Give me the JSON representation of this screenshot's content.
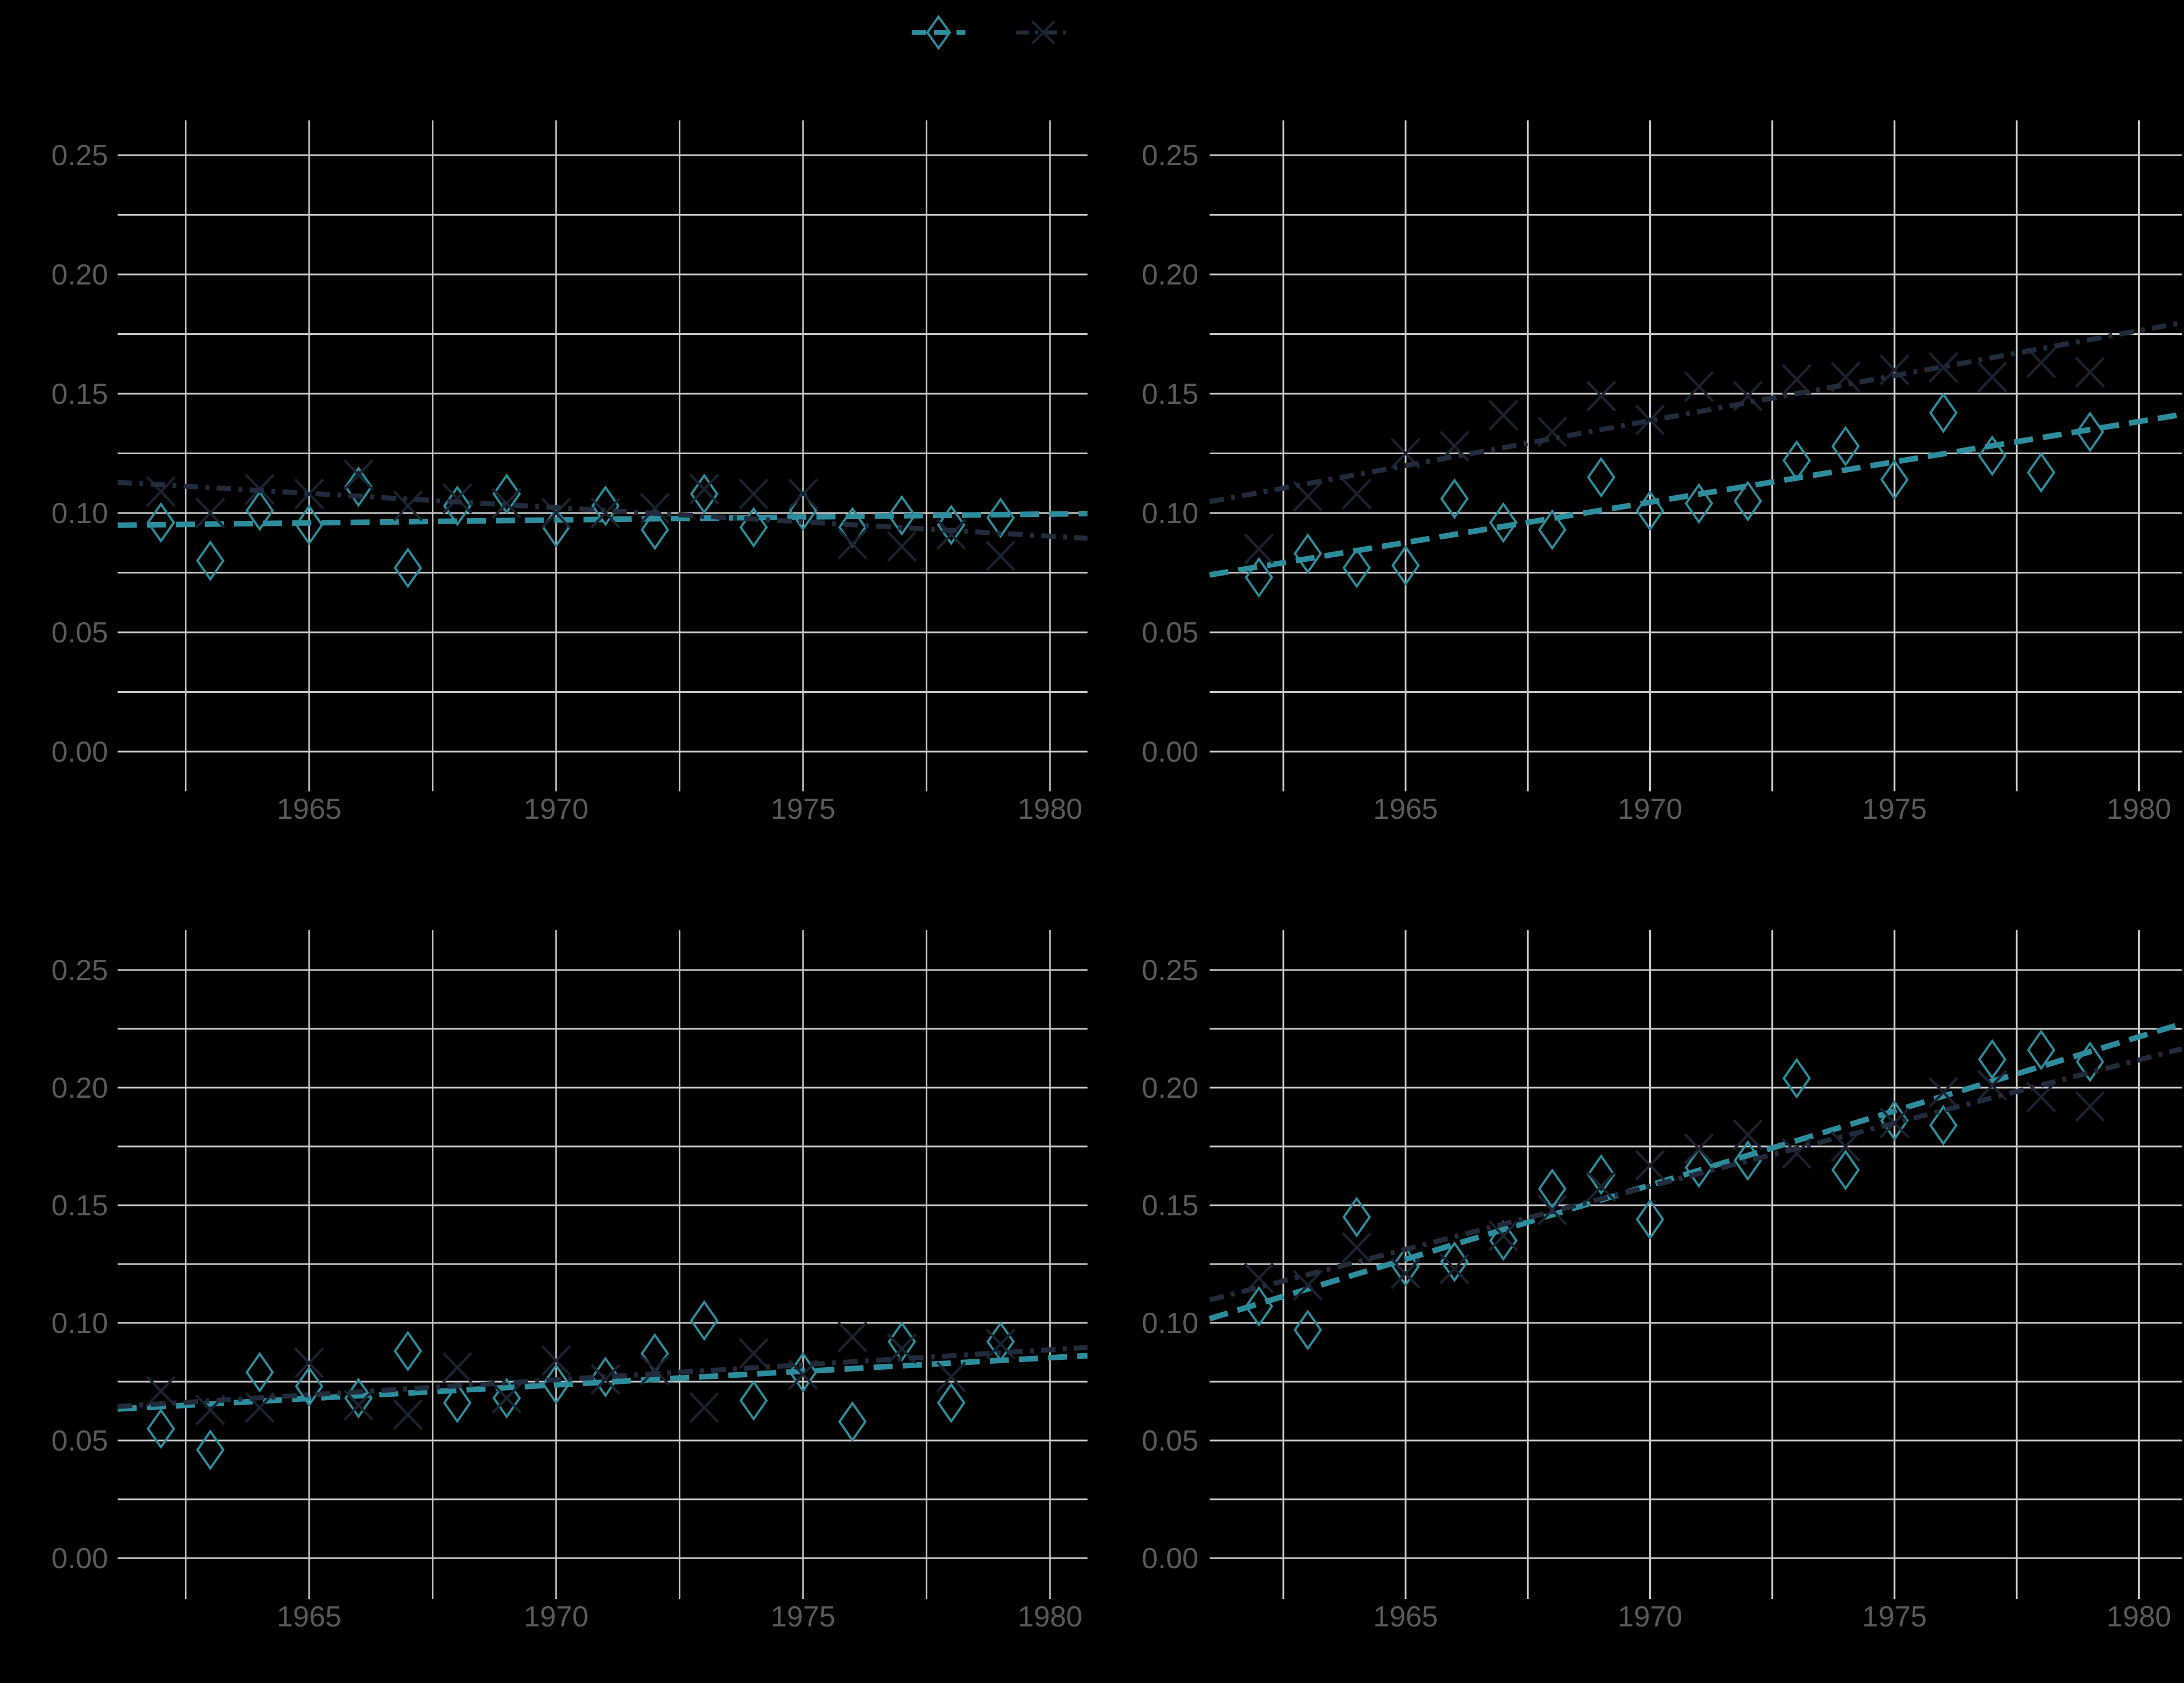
{
  "figure": {
    "background": "#000000",
    "grid_color": "#c9c9c9",
    "tick_label_color": "#595959",
    "series_colors": {
      "diamond": "#2e8d9d",
      "x": "#1b2331",
      "x_trend": "#212b3c"
    }
  },
  "legend": {
    "items": [
      {
        "name": "diamond-series",
        "marker": "diamond",
        "line_style": "dashed",
        "color": "#2e8d9d",
        "label": ""
      },
      {
        "name": "x-series",
        "marker": "x",
        "line_style": "dashdot",
        "color": "#1b2331",
        "label": ""
      }
    ]
  },
  "axes": {
    "y_ticks": [
      "0.25",
      "0.20",
      "0.15",
      "0.10",
      "0.05",
      "0.00"
    ],
    "y_tick_values": [
      0.25,
      0.2,
      0.15,
      0.1,
      0.05,
      0.0
    ],
    "y_minor_step": 0.025,
    "y_range": [
      -0.017,
      0.265
    ],
    "x_ticks": [
      "1965",
      "1970",
      "1975",
      "1980"
    ],
    "x_tick_values": [
      1965,
      1970,
      1975,
      1980
    ],
    "x_minor_step": 2.5,
    "x_gridline_years": [
      1962.5,
      1965,
      1967.5,
      1970,
      1972.5,
      1975,
      1977.5,
      1980
    ],
    "grid": true
  },
  "chart_data": [
    {
      "type": "scatter",
      "panel": "top-left",
      "title": "",
      "x": [
        1962,
        1963,
        1964,
        1965,
        1966,
        1967,
        1968,
        1969,
        1970,
        1971,
        1972,
        1973,
        1974,
        1975,
        1976,
        1977,
        1978,
        1979
      ],
      "series": [
        {
          "name": "diamond",
          "marker": "diamond",
          "trend": "ols-dashed",
          "values": [
            0.096,
            0.08,
            0.101,
            0.095,
            0.111,
            0.077,
            0.103,
            0.108,
            0.094,
            0.103,
            0.093,
            0.108,
            0.094,
            0.101,
            0.094,
            0.099,
            0.095,
            0.098
          ]
        },
        {
          "name": "x",
          "marker": "x",
          "trend": "ols-dashdot",
          "values": [
            0.109,
            0.1,
            0.11,
            0.108,
            0.116,
            0.103,
            0.106,
            0.104,
            0.1,
            0.1,
            0.102,
            0.11,
            0.108,
            0.108,
            0.087,
            0.086,
            0.091,
            0.082
          ]
        }
      ]
    },
    {
      "type": "scatter",
      "panel": "top-right",
      "title": "",
      "x": [
        1962,
        1963,
        1964,
        1965,
        1966,
        1967,
        1968,
        1969,
        1970,
        1971,
        1972,
        1973,
        1974,
        1975,
        1976,
        1977,
        1978,
        1979
      ],
      "series": [
        {
          "name": "diamond",
          "marker": "diamond",
          "trend": "ols-dashed",
          "values": [
            0.073,
            0.083,
            0.077,
            0.078,
            0.106,
            0.096,
            0.093,
            0.115,
            0.101,
            0.104,
            0.105,
            0.122,
            0.128,
            0.114,
            0.142,
            0.124,
            0.117,
            0.134
          ]
        },
        {
          "name": "x",
          "marker": "x",
          "trend": "ols-dashdot",
          "values": [
            0.085,
            0.107,
            0.108,
            0.125,
            0.128,
            0.141,
            0.134,
            0.149,
            0.139,
            0.153,
            0.149,
            0.156,
            0.157,
            0.16,
            0.161,
            0.157,
            0.163,
            0.159
          ]
        }
      ]
    },
    {
      "type": "scatter",
      "panel": "bottom-left",
      "title": "",
      "x": [
        1962,
        1963,
        1964,
        1965,
        1966,
        1967,
        1968,
        1969,
        1970,
        1971,
        1972,
        1973,
        1974,
        1975,
        1976,
        1977,
        1978,
        1979
      ],
      "series": [
        {
          "name": "diamond",
          "marker": "diamond",
          "trend": "ols-dashed",
          "values": [
            0.055,
            0.046,
            0.079,
            0.073,
            0.068,
            0.088,
            0.066,
            0.068,
            0.074,
            0.077,
            0.087,
            0.101,
            0.067,
            0.079,
            0.058,
            0.092,
            0.066,
            0.092
          ]
        },
        {
          "name": "x",
          "marker": "x",
          "trend": "ols-dashdot",
          "values": [
            0.071,
            0.063,
            0.064,
            0.083,
            0.065,
            0.061,
            0.081,
            0.068,
            0.084,
            0.076,
            0.08,
            0.064,
            0.087,
            0.078,
            0.094,
            0.089,
            0.077,
            0.091
          ]
        }
      ]
    },
    {
      "type": "scatter",
      "panel": "bottom-right",
      "title": "",
      "x": [
        1962,
        1963,
        1964,
        1965,
        1966,
        1967,
        1968,
        1969,
        1970,
        1971,
        1972,
        1973,
        1974,
        1975,
        1976,
        1977,
        1978,
        1979
      ],
      "series": [
        {
          "name": "diamond",
          "marker": "diamond",
          "trend": "ols-dashed",
          "values": [
            0.107,
            0.097,
            0.145,
            0.124,
            0.126,
            0.135,
            0.157,
            0.163,
            0.144,
            0.166,
            0.169,
            0.204,
            0.165,
            0.186,
            0.184,
            0.212,
            0.216,
            0.211
          ]
        },
        {
          "name": "x",
          "marker": "x",
          "trend": "ols-dashdot",
          "values": [
            0.119,
            0.116,
            0.132,
            0.121,
            0.123,
            0.137,
            0.148,
            0.158,
            0.167,
            0.174,
            0.18,
            0.172,
            0.175,
            0.185,
            0.198,
            0.201,
            0.196,
            0.192
          ]
        }
      ]
    }
  ]
}
